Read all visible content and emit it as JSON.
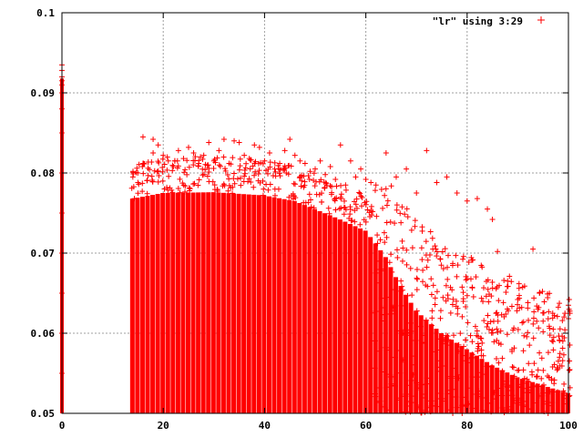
{
  "chart_data": {
    "type": "scatter",
    "marker": "plus",
    "grid": true,
    "legend_position": "top-right",
    "xlim": [
      0,
      100
    ],
    "ylim": [
      0.05,
      0.1
    ],
    "x_ticks": [
      0,
      20,
      40,
      60,
      80,
      100
    ],
    "x_tick_labels": [
      "0",
      "20",
      "40",
      "60",
      "80",
      "100"
    ],
    "y_ticks": [
      0.05,
      0.06,
      0.07,
      0.08,
      0.09,
      0.1
    ],
    "y_tick_labels": [
      "0.05",
      "0.06",
      "0.07",
      "0.08",
      "0.09",
      "0.1"
    ],
    "series": [
      {
        "name": "\"lr\" using 3:29",
        "color": "#ff0000",
        "points": [
          [
            0,
            0.0935
          ],
          [
            0,
            0.0928
          ],
          [
            0,
            0.092
          ],
          [
            0,
            0.0915
          ],
          [
            0,
            0.091
          ],
          [
            0,
            0.09
          ],
          [
            0,
            0.088
          ],
          [
            0,
            0.085
          ],
          [
            0,
            0.08
          ],
          [
            0,
            0.075
          ],
          [
            0,
            0.07
          ],
          [
            0,
            0.065
          ],
          [
            0,
            0.06
          ],
          [
            0,
            0.055
          ],
          [
            14,
            0.0795
          ],
          [
            15,
            0.0788
          ],
          [
            16,
            0.0845
          ],
          [
            16,
            0.0812
          ],
          [
            17,
            0.0806
          ],
          [
            18,
            0.0842
          ],
          [
            18,
            0.0825
          ],
          [
            19,
            0.0835
          ],
          [
            20,
            0.0822
          ],
          [
            21,
            0.0815
          ],
          [
            22,
            0.0808
          ],
          [
            23,
            0.0828
          ],
          [
            24,
            0.0818
          ],
          [
            25,
            0.0832
          ],
          [
            26,
            0.0825
          ],
          [
            27,
            0.0812
          ],
          [
            28,
            0.0822
          ],
          [
            29,
            0.0838
          ],
          [
            30,
            0.0815
          ],
          [
            31,
            0.0828
          ],
          [
            32,
            0.0842
          ],
          [
            33,
            0.0812
          ],
          [
            34,
            0.084
          ],
          [
            35,
            0.0838
          ],
          [
            36,
            0.0822
          ],
          [
            37,
            0.0818
          ],
          [
            38,
            0.0835
          ],
          [
            39,
            0.0832
          ],
          [
            40,
            0.0815
          ],
          [
            41,
            0.0825
          ],
          [
            42,
            0.0805
          ],
          [
            43,
            0.0812
          ],
          [
            44,
            0.0828
          ],
          [
            45,
            0.0842
          ],
          [
            46,
            0.0822
          ],
          [
            47,
            0.0815
          ],
          [
            48,
            0.0812
          ],
          [
            49,
            0.0802
          ],
          [
            50,
            0.0805
          ],
          [
            51,
            0.0815
          ],
          [
            52,
            0.0798
          ],
          [
            53,
            0.0808
          ],
          [
            54,
            0.0792
          ],
          [
            55,
            0.0835
          ],
          [
            56,
            0.0785
          ],
          [
            57,
            0.0815
          ],
          [
            58,
            0.0795
          ],
          [
            59,
            0.0805
          ],
          [
            60,
            0.0792
          ],
          [
            61,
            0.0788
          ],
          [
            62,
            0.0785
          ],
          [
            64,
            0.0825
          ],
          [
            66,
            0.0795
          ],
          [
            68,
            0.0805
          ],
          [
            70,
            0.0775
          ],
          [
            72,
            0.0828
          ],
          [
            74,
            0.0788
          ],
          [
            76,
            0.0795
          ],
          [
            78,
            0.0775
          ],
          [
            80,
            0.0765
          ],
          [
            82,
            0.0768
          ],
          [
            84,
            0.0755
          ],
          [
            85,
            0.0742
          ],
          [
            86,
            0.0702
          ],
          [
            88,
            0.0665
          ],
          [
            90,
            0.0642
          ],
          [
            92,
            0.0638
          ],
          [
            93,
            0.0705
          ],
          [
            95,
            0.0615
          ],
          [
            96,
            0.0618
          ],
          [
            97,
            0.0605
          ],
          [
            98,
            0.0565
          ],
          [
            99,
            0.0528
          ],
          [
            100,
            0.0635
          ]
        ]
      }
    ],
    "dense_region": {
      "x_start": 14,
      "x_end": 100,
      "upper_envelope": [
        [
          14,
          0.0768
        ],
        [
          20,
          0.0775
        ],
        [
          30,
          0.0776
        ],
        [
          40,
          0.0772
        ],
        [
          46,
          0.0765
        ],
        [
          50,
          0.0755
        ],
        [
          55,
          0.0742
        ],
        [
          60,
          0.0728
        ],
        [
          62,
          0.0712
        ],
        [
          64,
          0.0695
        ],
        [
          66,
          0.067
        ],
        [
          68,
          0.0648
        ],
        [
          70,
          0.0628
        ],
        [
          75,
          0.06
        ],
        [
          80,
          0.058
        ],
        [
          85,
          0.056
        ],
        [
          90,
          0.0545
        ],
        [
          95,
          0.0535
        ],
        [
          100,
          0.0525
        ]
      ]
    }
  }
}
